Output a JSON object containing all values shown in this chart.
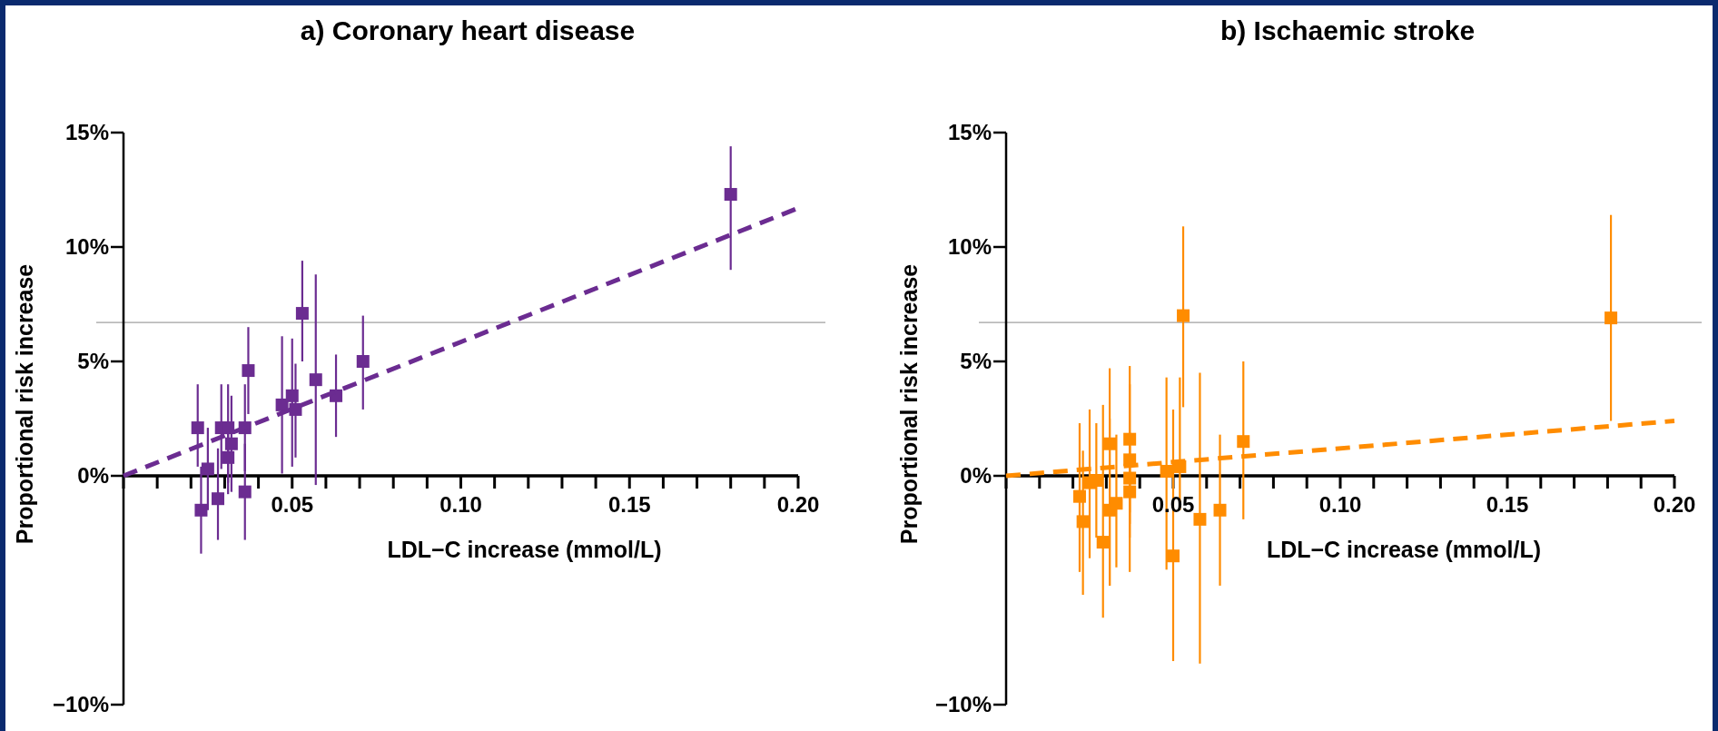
{
  "chart_data": [
    {
      "type": "scatter",
      "title": "a) Coronary heart disease",
      "xlabel": "LDL−C increase (mmol/L)",
      "ylabel": "Proportional risk increase",
      "xlim": [
        0,
        0.2
      ],
      "ylim": [
        -10,
        15
      ],
      "xticks": [
        {
          "value": 0,
          "label": null
        },
        {
          "value": 0.01,
          "label": null
        },
        {
          "value": 0.02,
          "label": null
        },
        {
          "value": 0.03,
          "label": null
        },
        {
          "value": 0.04,
          "label": null
        },
        {
          "value": 0.05,
          "label": "0.05"
        },
        {
          "value": 0.06,
          "label": null
        },
        {
          "value": 0.07,
          "label": null
        },
        {
          "value": 0.08,
          "label": null
        },
        {
          "value": 0.09,
          "label": null
        },
        {
          "value": 0.1,
          "label": "0.10"
        },
        {
          "value": 0.11,
          "label": null
        },
        {
          "value": 0.12,
          "label": null
        },
        {
          "value": 0.13,
          "label": null
        },
        {
          "value": 0.14,
          "label": null
        },
        {
          "value": 0.15,
          "label": "0.15"
        },
        {
          "value": 0.16,
          "label": null
        },
        {
          "value": 0.17,
          "label": null
        },
        {
          "value": 0.18,
          "label": null
        },
        {
          "value": 0.19,
          "label": null
        },
        {
          "value": 0.2,
          "label": "0.20"
        }
      ],
      "yticks": [
        {
          "value": -10,
          "label": "−10%"
        },
        {
          "value": 0,
          "label": "0%"
        },
        {
          "value": 5,
          "label": "5%"
        },
        {
          "value": 10,
          "label": "10%"
        },
        {
          "value": 15,
          "label": "15%"
        }
      ],
      "ref_lines": [
        {
          "axis": "y",
          "value": 6.7,
          "color": "#a0a0a0"
        }
      ],
      "series": [
        {
          "type": "scatter",
          "color": "#6b2c91",
          "marker": "square",
          "x": [
            0.022,
            0.023,
            0.025,
            0.028,
            0.029,
            0.031,
            0.031,
            0.032,
            0.037,
            0.036,
            0.036,
            0.047,
            0.05,
            0.051,
            0.053,
            0.057,
            0.063,
            0.071,
            0.18
          ],
          "values": [
            2.1,
            -1.5,
            0.3,
            -1.0,
            2.1,
            2.1,
            0.8,
            1.4,
            4.6,
            2.1,
            -0.7,
            3.1,
            3.5,
            2.9,
            7.1,
            4.2,
            3.5,
            5.0,
            12.3
          ],
          "errors": [
            [
              0.4,
              4.0
            ],
            [
              -3.4,
              0.4
            ],
            [
              -1.5,
              2.1
            ],
            [
              -2.8,
              1.2
            ],
            [
              0.3,
              4.0
            ],
            [
              -0.8,
              4.0
            ],
            [
              -0.3,
              1.9
            ],
            [
              -0.7,
              3.5
            ],
            [
              2.7,
              6.5
            ],
            [
              0.2,
              4.0
            ],
            [
              -2.8,
              1.4
            ],
            [
              0.1,
              6.1
            ],
            [
              0.4,
              6.0
            ],
            [
              0.8,
              4.9
            ],
            [
              5.0,
              9.4
            ],
            [
              -0.4,
              8.8
            ],
            [
              1.7,
              5.3
            ],
            [
              2.9,
              7.0
            ],
            [
              9.0,
              14.4
            ]
          ]
        },
        {
          "type": "line",
          "color": "#6b2c91",
          "line_style": "dashed",
          "x": [
            0,
            0.2
          ],
          "values": [
            0,
            11.7
          ]
        }
      ]
    },
    {
      "type": "scatter",
      "title": "b) Ischaemic stroke",
      "xlabel": "LDL−C increase (mmol/L)",
      "ylabel": "Proportional risk increase",
      "xlim": [
        0,
        0.2
      ],
      "ylim": [
        -10,
        15
      ],
      "xticks": [
        {
          "value": 0,
          "label": null
        },
        {
          "value": 0.01,
          "label": null
        },
        {
          "value": 0.02,
          "label": null
        },
        {
          "value": 0.03,
          "label": null
        },
        {
          "value": 0.04,
          "label": null
        },
        {
          "value": 0.05,
          "label": "0.05"
        },
        {
          "value": 0.06,
          "label": null
        },
        {
          "value": 0.07,
          "label": null
        },
        {
          "value": 0.08,
          "label": null
        },
        {
          "value": 0.09,
          "label": null
        },
        {
          "value": 0.1,
          "label": "0.10"
        },
        {
          "value": 0.11,
          "label": null
        },
        {
          "value": 0.12,
          "label": null
        },
        {
          "value": 0.13,
          "label": null
        },
        {
          "value": 0.14,
          "label": null
        },
        {
          "value": 0.15,
          "label": "0.15"
        },
        {
          "value": 0.16,
          "label": null
        },
        {
          "value": 0.17,
          "label": null
        },
        {
          "value": 0.18,
          "label": null
        },
        {
          "value": 0.19,
          "label": null
        },
        {
          "value": 0.2,
          "label": "0.20"
        }
      ],
      "yticks": [
        {
          "value": -10,
          "label": "−10%"
        },
        {
          "value": 0,
          "label": "0%"
        },
        {
          "value": 5,
          "label": "5%"
        },
        {
          "value": 10,
          "label": "10%"
        },
        {
          "value": 15,
          "label": "15%"
        }
      ],
      "ref_lines": [
        {
          "axis": "y",
          "value": 6.7,
          "color": "#a0a0a0"
        }
      ],
      "series": [
        {
          "type": "scatter",
          "color": "#ff8c00",
          "marker": "square",
          "x": [
            0.022,
            0.023,
            0.025,
            0.027,
            0.029,
            0.031,
            0.031,
            0.033,
            0.037,
            0.037,
            0.037,
            0.037,
            0.048,
            0.05,
            0.052,
            0.053,
            0.058,
            0.064,
            0.071,
            0.181
          ],
          "values": [
            -0.9,
            -2.0,
            -0.3,
            -0.2,
            -2.9,
            1.4,
            -1.5,
            -1.2,
            1.6,
            0.7,
            -0.1,
            -0.7,
            0.2,
            -3.5,
            0.4,
            7.0,
            -1.9,
            -1.5,
            1.5,
            6.9
          ],
          "errors": [
            [
              -4.2,
              2.3
            ],
            [
              -5.2,
              1.1
            ],
            [
              -3.6,
              2.9
            ],
            [
              -2.7,
              2.3
            ],
            [
              -6.2,
              3.1
            ],
            [
              -4.8,
              4.7
            ],
            [
              -4.8,
              2.5
            ],
            [
              -4.0,
              1.8
            ],
            [
              -1.6,
              4.8
            ],
            [
              -4.2,
              4.0
            ],
            [
              -2.1,
              1.9
            ],
            [
              -2.7,
              1.3
            ],
            [
              -4.1,
              4.3
            ],
            [
              -8.1,
              2.9
            ],
            [
              -1.5,
              4.3
            ],
            [
              3.0,
              10.9
            ],
            [
              -8.2,
              4.5
            ],
            [
              -4.8,
              1.8
            ],
            [
              -1.9,
              5.0
            ],
            [
              2.4,
              11.4
            ]
          ]
        },
        {
          "type": "line",
          "color": "#ff8c00",
          "line_style": "dashed",
          "x": [
            0,
            0.2
          ],
          "values": [
            0,
            2.4
          ]
        }
      ]
    }
  ]
}
